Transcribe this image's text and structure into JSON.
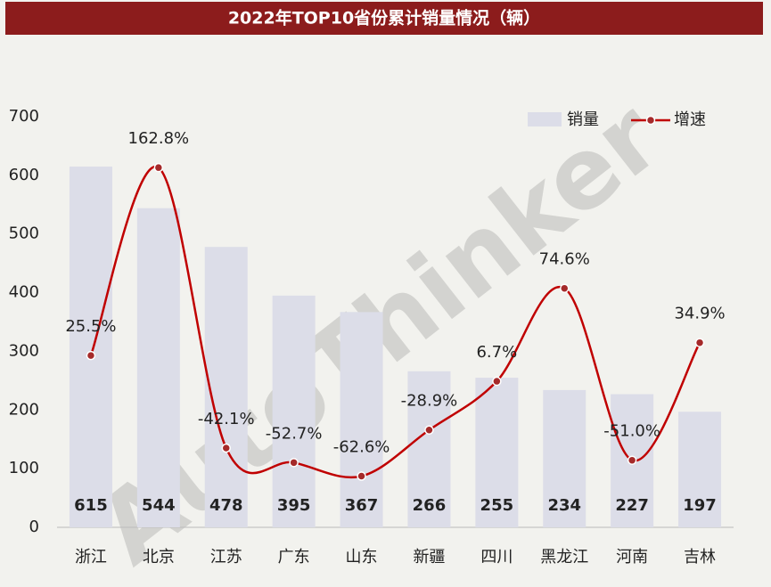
{
  "chart_data": {
    "type": "bar-line",
    "title": "2022年TOP10省份累计销量情况（辆）",
    "watermark": "AutoThinker",
    "categories": [
      "浙江",
      "北京",
      "江苏",
      "广东",
      "山东",
      "新疆",
      "四川",
      "黑龙江",
      "河南",
      "吉林"
    ],
    "series": [
      {
        "name": "销量",
        "type": "bar",
        "color": "#dcdde8",
        "values": [
          615,
          544,
          478,
          395,
          367,
          266,
          255,
          234,
          227,
          197
        ]
      },
      {
        "name": "增速",
        "type": "line",
        "axis": "y2",
        "color": "#c00000",
        "values": [
          25.5,
          162.8,
          -42.1,
          -52.7,
          -62.6,
          -28.9,
          6.7,
          74.6,
          -51.0,
          34.9
        ],
        "value_labels": [
          "25.5%",
          "162.8%",
          "-42.1%",
          "-52.7%",
          "-62.6%",
          "-28.9%",
          "6.7%",
          "74.6%",
          "-51.0%",
          "34.9%"
        ]
      }
    ],
    "ylim": [
      0,
      700
    ],
    "yticks": [
      0,
      100,
      200,
      300,
      400,
      500,
      600,
      700
    ],
    "y2lim": [
      -100,
      200
    ],
    "legend": "top-right"
  }
}
